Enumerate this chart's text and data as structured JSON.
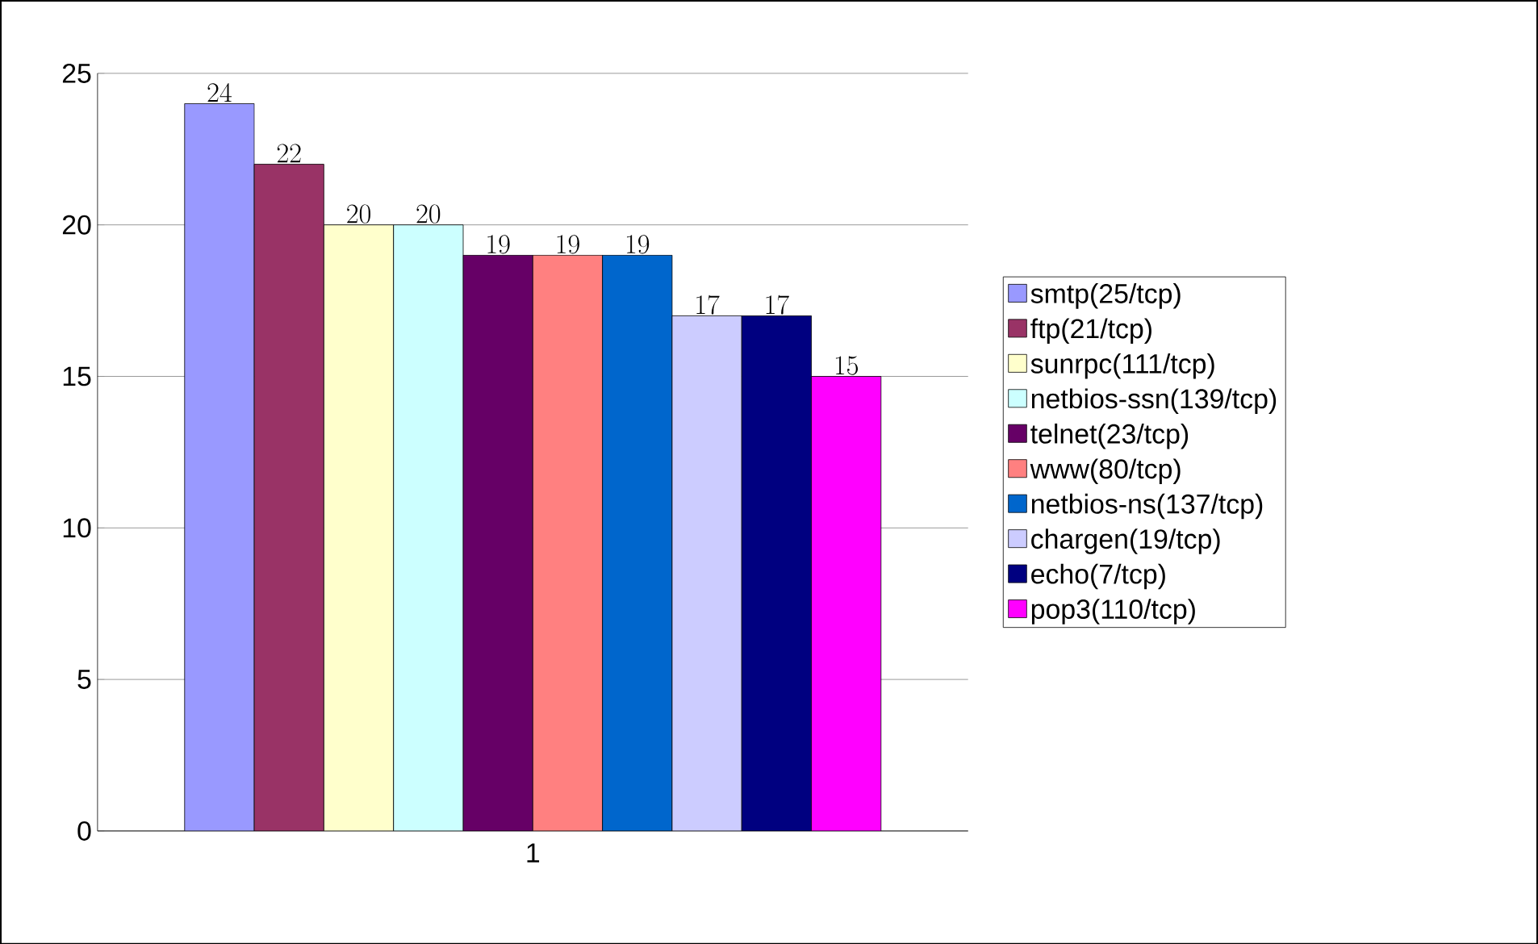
{
  "chart_data": {
    "type": "bar",
    "categories": [
      "1"
    ],
    "series": [
      {
        "name": "smtp(25/tcp)",
        "color": "#9999ff",
        "values": [
          24
        ]
      },
      {
        "name": "ftp(21/tcp)",
        "color": "#993366",
        "values": [
          22
        ]
      },
      {
        "name": "sunrpc(111/tcp)",
        "color": "#ffffcc",
        "values": [
          20
        ]
      },
      {
        "name": "netbios-ssn(139/tcp)",
        "color": "#ccffff",
        "values": [
          20
        ]
      },
      {
        "name": "telnet(23/tcp)",
        "color": "#660066",
        "values": [
          19
        ]
      },
      {
        "name": "www(80/tcp)",
        "color": "#ff8080",
        "values": [
          19
        ]
      },
      {
        "name": "netbios-ns(137/tcp)",
        "color": "#0066cc",
        "values": [
          19
        ]
      },
      {
        "name": "chargen(19/tcp)",
        "color": "#ccccff",
        "values": [
          17
        ]
      },
      {
        "name": "echo(7/tcp)",
        "color": "#000080",
        "values": [
          17
        ]
      },
      {
        "name": "pop3(110/tcp)",
        "color": "#ff00ff",
        "values": [
          15
        ]
      }
    ],
    "ylim": [
      0,
      25
    ],
    "yticks": [
      0,
      5,
      10,
      15,
      20,
      25
    ],
    "grid": "y",
    "legend": "right",
    "data_labels": true
  }
}
